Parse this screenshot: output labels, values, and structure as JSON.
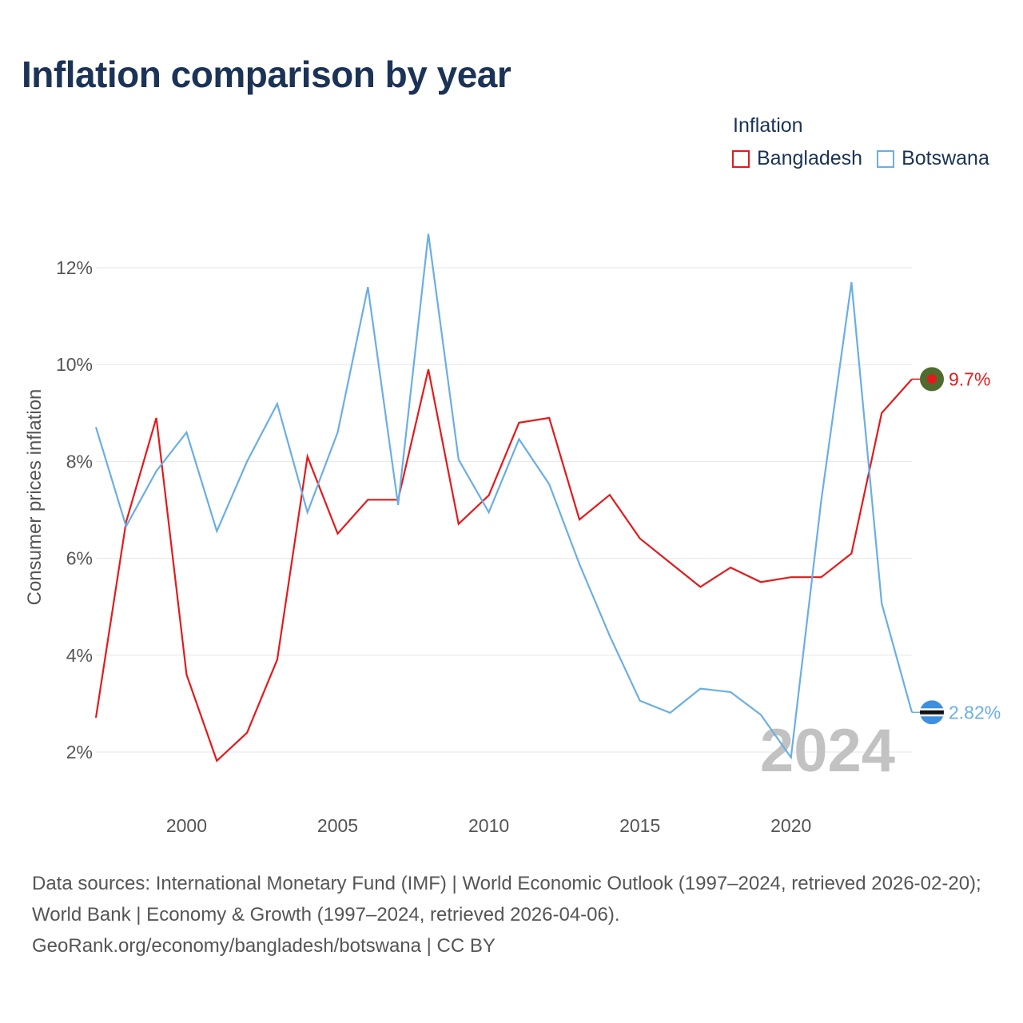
{
  "title": "Inflation comparison by year",
  "legend": {
    "title": "Inflation",
    "items": [
      {
        "label": "Bangladesh",
        "color": "#e31a1c"
      },
      {
        "label": "Botswana",
        "color": "#6aaee6"
      }
    ]
  },
  "sources": {
    "line1": "Data sources: International Monetary Fund (IMF) | World Economic Outlook (1997–2024, retrieved 2026-02-20); World Bank | Economy & Growth (1997–2024, retrieved 2026-04-06).",
    "line2": "GeoRank.org/economy/bangladesh/botswana | CC BY"
  },
  "chart_data": {
    "type": "line",
    "ylabel": "Consumer prices inflation",
    "xlabel": "",
    "year_watermark": "2024",
    "xlim": [
      1997,
      2024
    ],
    "ylim": [
      1.0,
      13.5
    ],
    "x_ticks": [
      2000,
      2005,
      2010,
      2015,
      2020
    ],
    "y_ticks": [
      2,
      4,
      6,
      8,
      10,
      12
    ],
    "y_tick_labels": [
      "2%",
      "4%",
      "6%",
      "8%",
      "10%",
      "12%"
    ],
    "grid": true,
    "x": [
      1997,
      1998,
      1999,
      2000,
      2001,
      2002,
      2003,
      2004,
      2005,
      2006,
      2007,
      2008,
      2009,
      2010,
      2011,
      2012,
      2013,
      2014,
      2015,
      2016,
      2017,
      2018,
      2019,
      2020,
      2021,
      2022,
      2023,
      2024
    ],
    "series": [
      {
        "name": "Bangladesh",
        "color": "#e31a1c",
        "end_label": "9.7%",
        "values": [
          2.71,
          6.75,
          8.9,
          3.6,
          1.82,
          2.4,
          3.91,
          8.1,
          6.51,
          7.21,
          7.21,
          9.9,
          6.71,
          7.3,
          8.8,
          8.9,
          6.8,
          7.31,
          6.41,
          5.91,
          5.41,
          5.81,
          5.51,
          5.61,
          5.61,
          6.1,
          9.0,
          9.7
        ]
      },
      {
        "name": "Botswana",
        "color": "#6aaee6",
        "end_label": "2.82%",
        "values": [
          8.71,
          6.66,
          7.8,
          8.6,
          6.56,
          8.0,
          9.19,
          6.95,
          8.6,
          11.6,
          7.1,
          12.7,
          8.04,
          6.95,
          8.46,
          7.53,
          5.88,
          4.4,
          3.06,
          2.81,
          3.31,
          3.24,
          2.77,
          1.89,
          7.2,
          11.7,
          5.07,
          2.82
        ]
      }
    ]
  }
}
